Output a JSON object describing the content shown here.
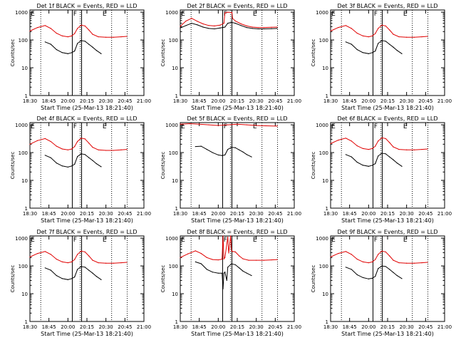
{
  "figure": {
    "x_axis_title": "Start Time (25-Mar-13 18:21:40)",
    "y_axis_title": "Counts/sec",
    "x_tick_labels": [
      "18:30",
      "18:45",
      "20:00",
      "20:15",
      "20:30",
      "20:45",
      "21:00"
    ],
    "y_tick_labels": [
      "1",
      "10",
      "100",
      "1000"
    ]
  },
  "chart_data": [
    {
      "type": "line",
      "title": "Det 1f BLACK = Events, RED = LLD",
      "marker_labels": [
        "E",
        "F",
        "E"
      ],
      "x_tick_labels": [
        "18:30",
        "18:45",
        "20:00",
        "20:15",
        "20:30",
        "20:45",
        "21:00"
      ],
      "y_scale": "log",
      "ylim": [
        1,
        1200
      ],
      "xlim": [
        0,
        6
      ],
      "dotted_lines_x": [
        0.57,
        2.65,
        4.3,
        5.12
      ],
      "solid_lines_x": [
        2.23,
        2.72
      ],
      "series": [
        {
          "name": "BLACK",
          "color": "#000000",
          "x": [
            0.8,
            1.1,
            1.4,
            1.7,
            2.0,
            2.2,
            2.35,
            2.5,
            2.7,
            2.9,
            3.1,
            3.3,
            3.5,
            3.75
          ],
          "y": [
            85,
            70,
            45,
            35,
            32,
            35,
            40,
            75,
            95,
            90,
            70,
            55,
            42,
            32
          ]
        },
        {
          "name": "RED",
          "color": "#e00000",
          "x": [
            0,
            0.4,
            0.8,
            1.1,
            1.4,
            1.7,
            2.0,
            2.2,
            2.35,
            2.5,
            2.7,
            2.9,
            3.1,
            3.3,
            3.6,
            4.0,
            4.4,
            4.8,
            5.1
          ],
          "y": [
            210,
            280,
            330,
            260,
            175,
            140,
            130,
            140,
            170,
            260,
            340,
            320,
            230,
            160,
            130,
            125,
            125,
            130,
            135
          ]
        }
      ]
    },
    {
      "type": "line",
      "title": "Det 2f BLACK = Events, RED = LLD",
      "marker_labels": [
        "E",
        "F",
        "E"
      ],
      "x_tick_labels": [
        "18:30",
        "18:45",
        "20:00",
        "20:15",
        "20:30",
        "20:45",
        "21:00"
      ],
      "y_scale": "log",
      "ylim": [
        1,
        1200
      ],
      "xlim": [
        0,
        6
      ],
      "dotted_lines_x": [
        0.57,
        2.65,
        4.3,
        5.12
      ],
      "solid_lines_x": [
        2.23,
        2.72
      ],
      "series": [
        {
          "name": "BLACK",
          "color": "#000000",
          "x": [
            0,
            0.3,
            0.6,
            0.9,
            1.2,
            1.5,
            1.8,
            2.1,
            2.35,
            2.5,
            2.7,
            2.9,
            3.2,
            3.5,
            3.8,
            4.1,
            4.4,
            4.8,
            5.1
          ],
          "y": [
            270,
            330,
            400,
            350,
            290,
            260,
            250,
            270,
            290,
            400,
            430,
            400,
            330,
            280,
            260,
            250,
            250,
            255,
            260
          ]
        },
        {
          "name": "RED",
          "color": "#e00000",
          "x": [
            0,
            0.3,
            0.6,
            0.9,
            1.2,
            1.5,
            1.8,
            2.1,
            2.3,
            2.35,
            2.5,
            2.72,
            2.75,
            2.9,
            3.2,
            3.5,
            3.8,
            4.1,
            4.4,
            4.8,
            5.1
          ],
          "y": [
            310,
            480,
            600,
            470,
            380,
            330,
            320,
            340,
            400,
            950,
            1000,
            980,
            600,
            480,
            380,
            320,
            290,
            280,
            280,
            285,
            290
          ]
        }
      ]
    },
    {
      "type": "line",
      "title": "Det 3f BLACK = Events, RED = LLD",
      "marker_labels": [
        "E",
        "F",
        "E"
      ],
      "x_tick_labels": [
        "18:30",
        "18:45",
        "20:00",
        "20:15",
        "20:30",
        "20:45",
        "21:00"
      ],
      "y_scale": "log",
      "ylim": [
        1,
        1200
      ],
      "xlim": [
        0,
        6
      ],
      "dotted_lines_x": [
        0.57,
        2.65,
        4.3,
        5.12
      ],
      "solid_lines_x": [
        2.23,
        2.72
      ],
      "series": [
        {
          "name": "BLACK",
          "color": "#000000",
          "x": [
            0.8,
            1.1,
            1.4,
            1.7,
            2.0,
            2.2,
            2.35,
            2.5,
            2.7,
            2.9,
            3.1,
            3.3,
            3.5,
            3.75
          ],
          "y": [
            85,
            70,
            45,
            35,
            32,
            35,
            40,
            75,
            95,
            90,
            70,
            55,
            42,
            32
          ]
        },
        {
          "name": "RED",
          "color": "#e00000",
          "x": [
            0,
            0.4,
            0.8,
            1.1,
            1.4,
            1.7,
            2.0,
            2.2,
            2.35,
            2.5,
            2.7,
            2.9,
            3.1,
            3.3,
            3.6,
            4.0,
            4.4,
            4.8,
            5.1
          ],
          "y": [
            210,
            280,
            330,
            260,
            175,
            140,
            130,
            140,
            170,
            260,
            340,
            320,
            230,
            160,
            130,
            125,
            125,
            130,
            135
          ]
        }
      ]
    },
    {
      "type": "line",
      "title": "Det 4f BLACK = Events, RED = LLD",
      "marker_labels": [
        "E",
        "F",
        "E"
      ],
      "x_tick_labels": [
        "18:30",
        "18:45",
        "20:00",
        "20:15",
        "20:30",
        "20:45",
        "21:00"
      ],
      "y_scale": "log",
      "ylim": [
        1,
        1200
      ],
      "xlim": [
        0,
        6
      ],
      "dotted_lines_x": [
        0.57,
        2.65,
        4.3,
        5.12
      ],
      "solid_lines_x": [
        2.23,
        2.72
      ],
      "series": [
        {
          "name": "BLACK",
          "color": "#000000",
          "x": [
            0.8,
            1.1,
            1.4,
            1.7,
            2.0,
            2.2,
            2.35,
            2.5,
            2.7,
            2.9,
            3.1,
            3.3,
            3.5,
            3.75
          ],
          "y": [
            80,
            65,
            42,
            33,
            30,
            33,
            38,
            72,
            90,
            85,
            66,
            52,
            40,
            31
          ]
        },
        {
          "name": "RED",
          "color": "#e00000",
          "x": [
            0,
            0.4,
            0.8,
            1.1,
            1.4,
            1.7,
            2.0,
            2.2,
            2.35,
            2.5,
            2.7,
            2.9,
            3.1,
            3.3,
            3.6,
            4.0,
            4.4,
            4.8,
            5.1
          ],
          "y": [
            200,
            270,
            320,
            250,
            170,
            135,
            125,
            135,
            165,
            250,
            330,
            310,
            220,
            155,
            125,
            120,
            120,
            125,
            130
          ]
        }
      ]
    },
    {
      "type": "line",
      "title": "Det 5f BLACK = Events, RED = LLD",
      "marker_labels": [
        "E",
        "F",
        "E"
      ],
      "x_tick_labels": [
        "18:30",
        "18:45",
        "20:00",
        "20:15",
        "20:30",
        "20:45",
        "21:00"
      ],
      "y_scale": "log",
      "ylim": [
        1,
        1200
      ],
      "xlim": [
        0,
        6
      ],
      "dotted_lines_x": [
        0.57,
        2.65,
        4.3,
        5.12
      ],
      "solid_lines_x": [
        2.23,
        2.72
      ],
      "series": [
        {
          "name": "BLACK",
          "color": "#000000",
          "x": [
            0.8,
            1.1,
            1.4,
            1.7,
            2.0,
            2.2,
            2.35,
            2.5,
            2.7,
            2.9,
            3.1,
            3.3,
            3.5,
            3.75
          ],
          "y": [
            165,
            170,
            130,
            100,
            82,
            78,
            82,
            130,
            155,
            150,
            125,
            105,
            85,
            70
          ]
        },
        {
          "name": "RED",
          "color": "#e00000",
          "x": [
            0,
            0.5,
            1.0,
            1.5,
            2.0,
            2.5,
            3.0,
            3.5,
            4.0,
            4.5,
            5.1
          ],
          "y": [
            1050,
            1100,
            1050,
            1000,
            950,
            1000,
            1050,
            1000,
            950,
            920,
            900
          ]
        }
      ]
    },
    {
      "type": "line",
      "title": "Det 6f BLACK = Events, RED = LLD",
      "marker_labels": [
        "E",
        "F",
        "E"
      ],
      "x_tick_labels": [
        "18:30",
        "18:45",
        "20:00",
        "20:15",
        "20:30",
        "20:45",
        "21:00"
      ],
      "y_scale": "log",
      "ylim": [
        1,
        1200
      ],
      "xlim": [
        0,
        6
      ],
      "dotted_lines_x": [
        0.57,
        2.65,
        4.3,
        5.12
      ],
      "solid_lines_x": [
        2.23,
        2.72
      ],
      "series": [
        {
          "name": "BLACK",
          "color": "#000000",
          "x": [
            0.8,
            1.1,
            1.4,
            1.7,
            2.0,
            2.2,
            2.35,
            2.5,
            2.7,
            2.9,
            3.1,
            3.3,
            3.5,
            3.75
          ],
          "y": [
            85,
            70,
            45,
            35,
            32,
            35,
            40,
            75,
            95,
            90,
            70,
            55,
            42,
            32
          ]
        },
        {
          "name": "RED",
          "color": "#e00000",
          "x": [
            0,
            0.4,
            0.8,
            1.1,
            1.4,
            1.7,
            2.0,
            2.2,
            2.35,
            2.5,
            2.7,
            2.9,
            3.1,
            3.3,
            3.6,
            4.0,
            4.4,
            4.8,
            5.1
          ],
          "y": [
            210,
            280,
            330,
            260,
            175,
            140,
            130,
            140,
            170,
            260,
            340,
            320,
            230,
            160,
            130,
            125,
            125,
            130,
            135
          ]
        }
      ]
    },
    {
      "type": "line",
      "title": "Det 7f BLACK = Events, RED = LLD",
      "marker_labels": [
        "E",
        "F",
        "E"
      ],
      "x_tick_labels": [
        "18:30",
        "18:45",
        "20:00",
        "20:15",
        "20:30",
        "20:45",
        "21:00"
      ],
      "y_scale": "log",
      "ylim": [
        1,
        1200
      ],
      "xlim": [
        0,
        6
      ],
      "dotted_lines_x": [
        0.57,
        2.65,
        4.3,
        5.12
      ],
      "solid_lines_x": [
        2.23,
        2.72
      ],
      "series": [
        {
          "name": "BLACK",
          "color": "#000000",
          "x": [
            0.8,
            1.1,
            1.4,
            1.7,
            2.0,
            2.2,
            2.35,
            2.5,
            2.7,
            2.9,
            3.1,
            3.3,
            3.5,
            3.75
          ],
          "y": [
            85,
            70,
            45,
            35,
            32,
            35,
            40,
            75,
            95,
            90,
            70,
            55,
            42,
            32
          ]
        },
        {
          "name": "RED",
          "color": "#e00000",
          "x": [
            0,
            0.4,
            0.8,
            1.1,
            1.4,
            1.7,
            2.0,
            2.2,
            2.35,
            2.5,
            2.7,
            2.9,
            3.1,
            3.3,
            3.6,
            4.0,
            4.4,
            4.8,
            5.1
          ],
          "y": [
            210,
            280,
            330,
            260,
            175,
            140,
            130,
            140,
            170,
            260,
            340,
            320,
            230,
            160,
            130,
            125,
            125,
            130,
            135
          ]
        }
      ]
    },
    {
      "type": "line",
      "title": "Det 8f BLACK = Events, RED = LLD",
      "marker_labels": [
        "E",
        "F",
        "E"
      ],
      "x_tick_labels": [
        "18:30",
        "18:45",
        "20:00",
        "20:15",
        "20:30",
        "20:45",
        "21:00"
      ],
      "y_scale": "log",
      "ylim": [
        1,
        1200
      ],
      "xlim": [
        0,
        6
      ],
      "dotted_lines_x": [
        0.57,
        2.65,
        4.3,
        5.12
      ],
      "solid_lines_x": [
        2.23,
        2.72
      ],
      "series": [
        {
          "name": "BLACK",
          "color": "#000000",
          "x": [
            0.8,
            1.1,
            1.4,
            1.7,
            2.0,
            2.2,
            2.25,
            2.3,
            2.35,
            2.45,
            2.5,
            2.7,
            2.9,
            3.1,
            3.3,
            3.5,
            3.75
          ],
          "y": [
            140,
            120,
            75,
            60,
            55,
            55,
            15,
            55,
            60,
            30,
            90,
            120,
            110,
            85,
            65,
            55,
            45
          ]
        },
        {
          "name": "RED",
          "color": "#e00000",
          "x": [
            0,
            0.4,
            0.8,
            1.1,
            1.4,
            1.7,
            2.0,
            2.2,
            2.25,
            2.3,
            2.35,
            2.5,
            2.55,
            2.65,
            2.7,
            2.75,
            2.9,
            3.1,
            3.3,
            3.6,
            4.0,
            4.4,
            4.8,
            5.1
          ],
          "y": [
            200,
            270,
            350,
            280,
            200,
            170,
            165,
            175,
            1200,
            180,
            200,
            1100,
            290,
            1200,
            340,
            330,
            320,
            230,
            180,
            160,
            160,
            160,
            165,
            170
          ]
        }
      ]
    },
    {
      "type": "line",
      "title": "Det 9f BLACK = Events, RED = LLD",
      "marker_labels": [
        "E",
        "F",
        "E"
      ],
      "x_tick_labels": [
        "18:30",
        "18:45",
        "20:00",
        "20:15",
        "20:30",
        "20:45",
        "21:00"
      ],
      "y_scale": "log",
      "ylim": [
        1,
        1200
      ],
      "xlim": [
        0,
        6
      ],
      "dotted_lines_x": [
        0.57,
        2.65,
        4.3,
        5.12
      ],
      "solid_lines_x": [
        2.23,
        2.72
      ],
      "series": [
        {
          "name": "BLACK",
          "color": "#000000",
          "x": [
            0.8,
            1.1,
            1.4,
            1.7,
            2.0,
            2.2,
            2.35,
            2.5,
            2.7,
            2.9,
            3.1,
            3.3,
            3.5,
            3.75
          ],
          "y": [
            90,
            75,
            48,
            38,
            34,
            36,
            42,
            80,
            100,
            95,
            75,
            58,
            45,
            35
          ]
        },
        {
          "name": "RED",
          "color": "#e00000",
          "x": [
            0,
            0.4,
            0.8,
            1.1,
            1.4,
            1.7,
            2.0,
            2.2,
            2.35,
            2.5,
            2.7,
            2.9,
            3.1,
            3.3,
            3.6,
            4.0,
            4.4,
            4.8,
            5.1
          ],
          "y": [
            210,
            280,
            330,
            260,
            175,
            140,
            130,
            140,
            170,
            260,
            340,
            320,
            230,
            160,
            130,
            125,
            125,
            130,
            135
          ]
        }
      ]
    }
  ]
}
